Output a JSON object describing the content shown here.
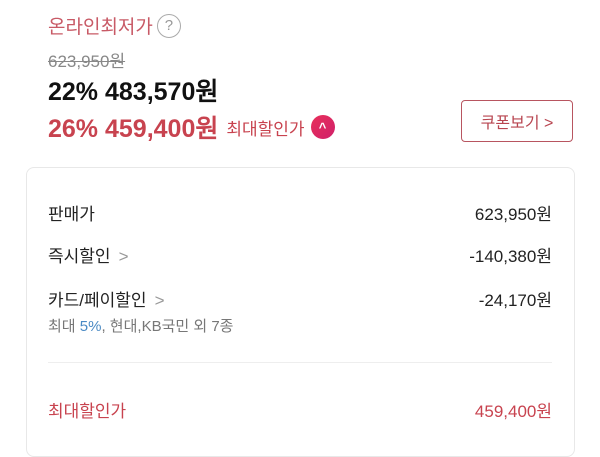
{
  "header": {
    "title": "온라인최저가",
    "help_icon": "?",
    "original_price": "623,950원",
    "discount_price": "22% 483,570원",
    "max_discount_price": "26% 459,400원",
    "max_discount_label": "최대할인가",
    "expand_icon": "^",
    "coupon_button": "쿠폰보기 >"
  },
  "breakdown": {
    "rows": [
      {
        "label": "판매가",
        "value": "623,950원"
      },
      {
        "label": "즉시할인",
        "value": "-140,380원",
        "chevron": ">"
      },
      {
        "label": "카드/페이할인",
        "value": "-24,170원",
        "chevron": ">"
      }
    ],
    "card_note": {
      "prefix": "최대 ",
      "percent": "5%",
      "suffix": ", 현대,KB국민 외 7종"
    },
    "total": {
      "label": "최대할인가",
      "value": "459,400원"
    }
  },
  "colors": {
    "accent": "#c8434f",
    "link": "#4a8ac4"
  }
}
